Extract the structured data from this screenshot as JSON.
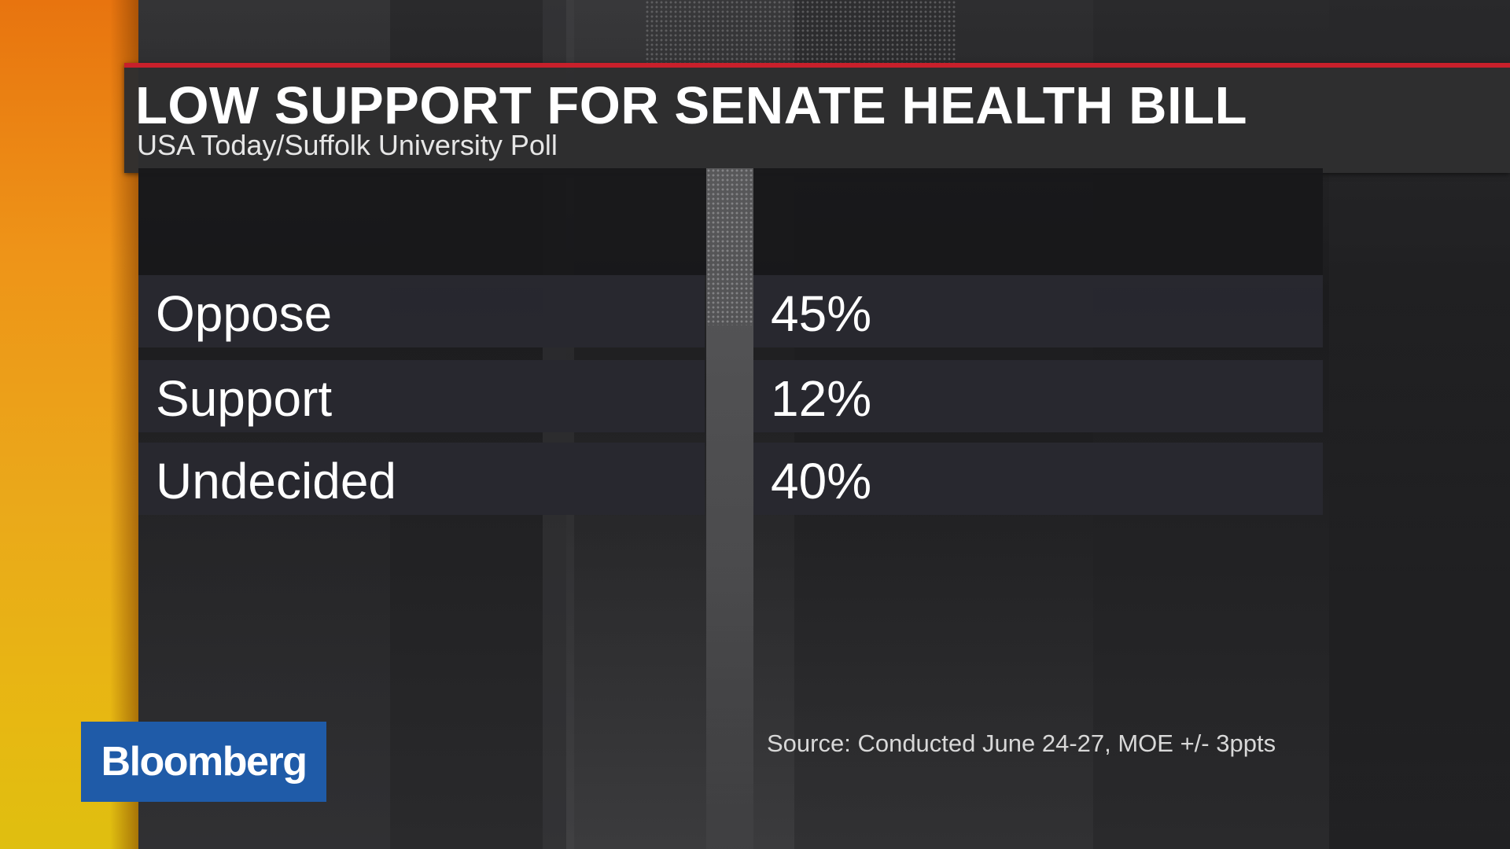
{
  "header": {
    "title": "LOW SUPPORT FOR SENATE HEALTH BILL",
    "subtitle": "USA Today/Suffolk University Poll"
  },
  "table": {
    "rows": [
      {
        "label": "Oppose",
        "value": "45%"
      },
      {
        "label": "Support",
        "value": "12%"
      },
      {
        "label": "Undecided",
        "value": "40%"
      }
    ]
  },
  "footer": {
    "source": "Source: Conducted June 24-27, MOE +/- 3ppts"
  },
  "logo": {
    "text": "Bloomberg"
  },
  "colors": {
    "accent_red": "#c8202b",
    "brand_blue": "#1f5ba8",
    "accent_orange": "#ee9418",
    "accent_yellow": "#e7b812"
  }
}
